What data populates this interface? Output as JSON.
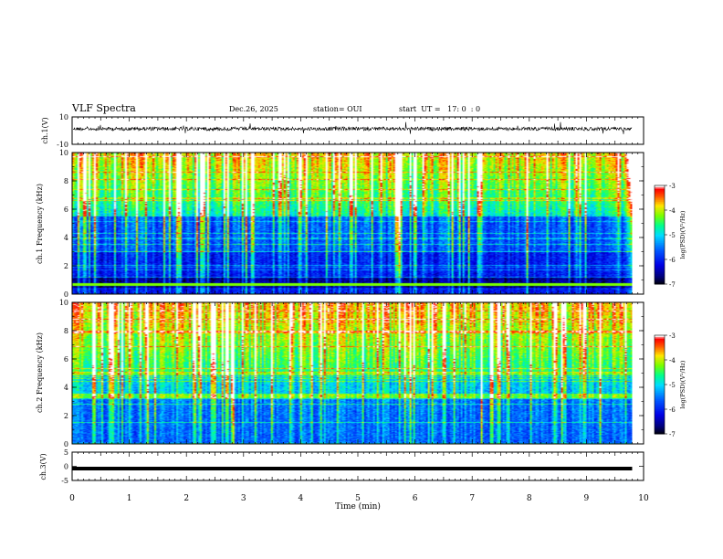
{
  "header": {
    "title": "VLF Spectra",
    "date": "Dec.26, 2025",
    "station": "station= OUI",
    "start": "start  UT =   17: 0  : 0"
  },
  "chart_data": [
    {
      "type": "line",
      "panel": "ch1-waveform",
      "ylabel": "ch.1(V)",
      "ylim": [
        -10,
        10
      ],
      "yticks": [
        "10",
        "-10"
      ],
      "xlim": [
        0,
        10
      ],
      "description_series": [
        {
          "x": [
            0,
            9.8
          ],
          "y": [
            0,
            0
          ]
        }
      ]
    },
    {
      "type": "heatmap",
      "panel": "ch1-spectrogram",
      "ylabel": "ch.1 Frequency (kHz)",
      "ylim": [
        0,
        10
      ],
      "yticks": [
        "0",
        "2",
        "4",
        "6",
        "8",
        "10"
      ],
      "xlim": [
        0,
        10
      ],
      "data_extent_min": 9.8,
      "colorbar": {
        "label": "log(PSD)(V²/Hz)",
        "range": [
          -7,
          -3
        ],
        "ticks": [
          "-3",
          "-4",
          "-5",
          "-6",
          "-7"
        ]
      }
    },
    {
      "type": "heatmap",
      "panel": "ch2-spectrogram",
      "ylabel": "ch.2 Frequency (kHz)",
      "ylim": [
        0,
        10
      ],
      "yticks": [
        "0",
        "2",
        "4",
        "6",
        "8",
        "10"
      ],
      "xlim": [
        0,
        10
      ],
      "data_extent_min": 9.8,
      "colorbar": {
        "label": "log(PSD)(V²/Hz)",
        "range": [
          -7,
          -3
        ],
        "ticks": [
          "-3",
          "-4",
          "-5",
          "-6",
          "-7"
        ]
      }
    },
    {
      "type": "line",
      "panel": "ch3-waveform",
      "ylabel": "ch.3(V)",
      "ylim": [
        -5,
        5
      ],
      "yticks": [
        "5",
        "0",
        "-5"
      ],
      "xlim": [
        0,
        10
      ],
      "series": [
        {
          "x": [
            0,
            9.8
          ],
          "y": [
            -0.8,
            -0.8
          ]
        }
      ]
    }
  ],
  "xaxis": {
    "label": "Time  (min)",
    "ticks": [
      "0",
      "1",
      "2",
      "3",
      "4",
      "5",
      "6",
      "7",
      "8",
      "9",
      "10"
    ]
  },
  "colors": {
    "colormap": [
      "#000000",
      "#0000c8",
      "#0060ff",
      "#00d8ff",
      "#00ff80",
      "#c8ff00",
      "#ffc800",
      "#ff0000",
      "#ffffff"
    ]
  }
}
